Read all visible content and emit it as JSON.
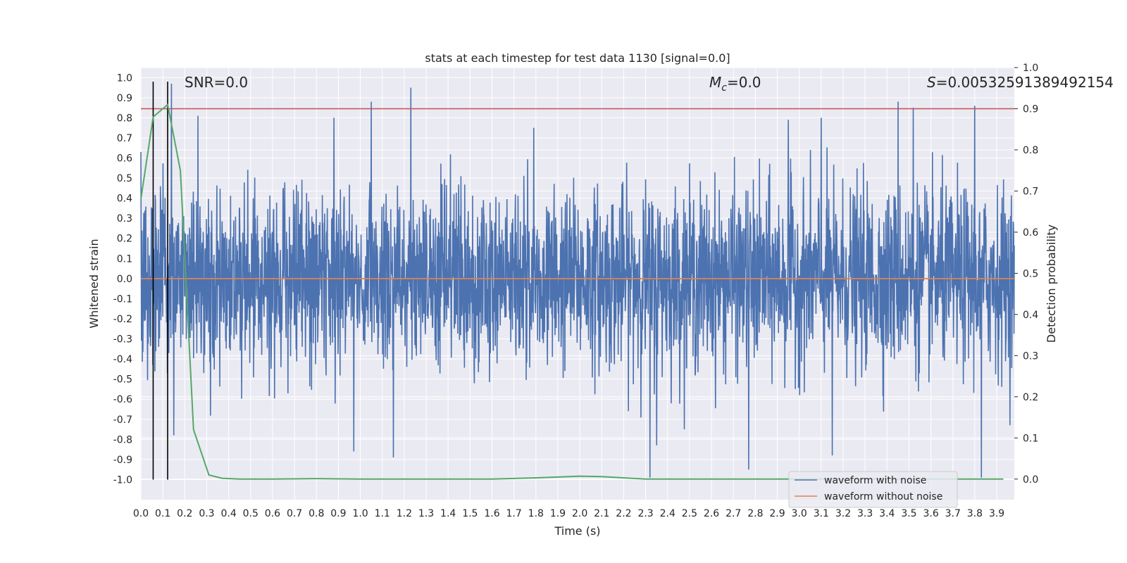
{
  "chart_data": {
    "type": "line",
    "title": "stats at each timestep for test data 1130 [signal=0.0]",
    "xlabel": "Time (s)",
    "ylabel": "Whitened strain",
    "y2label": "Detection probability",
    "xlim": [
      0.0,
      3.98
    ],
    "ylim": [
      -1.1,
      1.05
    ],
    "y2lim": [
      -0.05,
      1.0
    ],
    "x_ticks": [
      "0.0",
      "0.1",
      "0.2",
      "0.3",
      "0.4",
      "0.5",
      "0.6",
      "0.7",
      "0.8",
      "0.9",
      "1.0",
      "1.1",
      "1.2",
      "1.3",
      "1.4",
      "1.5",
      "1.6",
      "1.7",
      "1.8",
      "1.9",
      "2.0",
      "2.1",
      "2.2",
      "2.3",
      "2.4",
      "2.5",
      "2.6",
      "2.7",
      "2.8",
      "2.9",
      "3.0",
      "3.1",
      "3.2",
      "3.3",
      "3.4",
      "3.5",
      "3.6",
      "3.7",
      "3.8",
      "3.9"
    ],
    "y_ticks": [
      "1.0",
      "0.9",
      "0.8",
      "0.7",
      "0.6",
      "0.5",
      "0.4",
      "0.3",
      "0.2",
      "0.1",
      "0.0",
      "-0.1",
      "-0.2",
      "-0.3",
      "-0.4",
      "-0.5",
      "-0.6",
      "-0.7",
      "-0.8",
      "-0.9",
      "-1.0"
    ],
    "y2_ticks": [
      "1.0",
      "0.9",
      "0.8",
      "0.7",
      "0.6",
      "0.5",
      "0.4",
      "0.3",
      "0.2",
      "0.1",
      "0.0"
    ],
    "grid": true,
    "legend_placement": "lower-right",
    "annotations": {
      "snr": "SNR=0.0",
      "mc_symbol": "M",
      "mc_sub": "c",
      "mc_value": "=0.0",
      "s_symbol": "S",
      "s_value": "=0.00532591389492154"
    },
    "series": [
      {
        "name": "waveform with noise",
        "color": "#4c72b0",
        "axis": "left",
        "noise_amplitude": 0.22,
        "sample_count": 3000,
        "peaks": [
          {
            "x": 0.0,
            "y": 0.63
          },
          {
            "x": 0.14,
            "y": 0.97
          },
          {
            "x": 0.15,
            "y": -0.78
          },
          {
            "x": 0.26,
            "y": 0.81
          },
          {
            "x": 0.88,
            "y": 0.8
          },
          {
            "x": 0.97,
            "y": -0.86
          },
          {
            "x": 1.05,
            "y": 0.88
          },
          {
            "x": 1.15,
            "y": -0.89
          },
          {
            "x": 1.23,
            "y": 0.95
          },
          {
            "x": 1.79,
            "y": 0.75
          },
          {
            "x": 2.32,
            "y": -0.99
          },
          {
            "x": 2.35,
            "y": -0.83
          },
          {
            "x": 2.77,
            "y": -0.95
          },
          {
            "x": 2.95,
            "y": 0.79
          },
          {
            "x": 3.1,
            "y": 0.8
          },
          {
            "x": 3.15,
            "y": -0.88
          },
          {
            "x": 3.45,
            "y": 0.88
          },
          {
            "x": 3.52,
            "y": 0.85
          },
          {
            "x": 3.8,
            "y": 0.86
          },
          {
            "x": 3.83,
            "y": -0.99
          }
        ]
      },
      {
        "name": "waveform without noise",
        "color": "#dd8452",
        "axis": "left",
        "x": [
          0.0,
          3.98
        ],
        "y": [
          0.0,
          0.0
        ]
      },
      {
        "name": "detection probability",
        "color": "#55a868",
        "axis": "right",
        "x": [
          0.0,
          0.056,
          0.122,
          0.18,
          0.24,
          0.31,
          0.37,
          0.45,
          0.6,
          0.8,
          1.0,
          1.3,
          1.6,
          1.8,
          2.0,
          2.1,
          2.3,
          2.5,
          3.0,
          3.5,
          3.93
        ],
        "y": [
          0.68,
          0.88,
          0.91,
          0.75,
          0.12,
          0.01,
          0.002,
          0.0,
          0.0,
          0.001,
          0.0,
          0.0,
          0.0,
          0.003,
          0.007,
          0.006,
          0.0,
          0.0,
          0.0,
          0.0,
          0.0
        ]
      }
    ],
    "threshold_line": {
      "axis": "right",
      "value": 0.9,
      "color": "#c44e52"
    },
    "vertical_lines": [
      0.056,
      0.122
    ],
    "vertical_line_range": [
      -1.0,
      0.98
    ],
    "colors": {
      "plot_background": "#eaeaf2",
      "grid": "#ffffff",
      "text": "#262626",
      "vline": "#000000"
    }
  }
}
